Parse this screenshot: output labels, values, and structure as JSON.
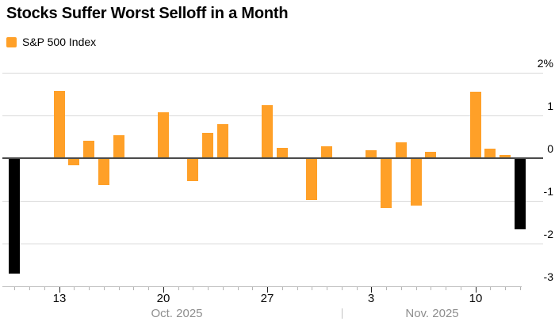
{
  "title": "Stocks Suffer Worst Selloff in a Month",
  "legend": {
    "label": "S&P 500 Index"
  },
  "colors": {
    "background": "#ffffff",
    "bar": "#FFA028",
    "bar_highlight": "#000000",
    "grid": "#d9d9d9",
    "zero_line": "#4a4a4a",
    "axis_line": "#c2c2c2",
    "tick_minor": "#b5b5b5",
    "tick_major": "#222222",
    "date_label": "#0a0a0a",
    "month_label": "#8e8e8e",
    "title_text": "#000000"
  },
  "chart_data": {
    "type": "bar",
    "title": "Stocks Suffer Worst Selloff in a Month",
    "series_name": "S&P 500 Index",
    "y_unit": "percent daily change",
    "ylim": [
      -3,
      2
    ],
    "grid": "horizontal",
    "legend_position": "top-left",
    "y_ticks": [
      {
        "value": 2,
        "label": "2%"
      },
      {
        "value": 1,
        "label": "1"
      },
      {
        "value": 0,
        "label": "0"
      },
      {
        "value": -1,
        "label": "-1"
      },
      {
        "value": -2,
        "label": "-2"
      },
      {
        "value": -3,
        "label": "-3"
      }
    ],
    "x_axis": {
      "first_date": "Oct 10, 2025",
      "last_date": "Nov 13, 2025",
      "tick_labels": [
        {
          "label": "13",
          "day": 3
        },
        {
          "label": "20",
          "day": 10
        },
        {
          "label": "27",
          "day": 17
        },
        {
          "label": "3",
          "day": 24
        },
        {
          "label": "10",
          "day": 31
        }
      ],
      "month_labels": [
        {
          "label": "Oct. 2025",
          "center_day": 10.9
        },
        {
          "label": "Nov. 2025",
          "center_day": 28.1
        }
      ],
      "month_divider_day": 22,
      "minor_tick_days": [
        0,
        1,
        2,
        3,
        4,
        5,
        6,
        7,
        8,
        9,
        10,
        11,
        12,
        13,
        14,
        15,
        16,
        17,
        18,
        19,
        20,
        21,
        22,
        23,
        24,
        25,
        26,
        27,
        28,
        29,
        30,
        31,
        32,
        33,
        34
      ]
    },
    "bars": [
      {
        "date": "Oct 10",
        "day": 0,
        "value": -2.71,
        "highlight": true
      },
      {
        "date": "Oct 13",
        "day": 3,
        "value": 1.56,
        "highlight": false
      },
      {
        "date": "Oct 14",
        "day": 4,
        "value": -0.16,
        "highlight": false
      },
      {
        "date": "Oct 15",
        "day": 5,
        "value": 0.4,
        "highlight": false
      },
      {
        "date": "Oct 16",
        "day": 6,
        "value": -0.63,
        "highlight": false
      },
      {
        "date": "Oct 17",
        "day": 7,
        "value": 0.53,
        "highlight": false
      },
      {
        "date": "Oct 20",
        "day": 10,
        "value": 1.07,
        "highlight": false
      },
      {
        "date": "Oct 21",
        "day": 11,
        "value": 0.0,
        "highlight": false
      },
      {
        "date": "Oct 22",
        "day": 12,
        "value": -0.53,
        "highlight": false
      },
      {
        "date": "Oct 23",
        "day": 13,
        "value": 0.58,
        "highlight": false
      },
      {
        "date": "Oct 24",
        "day": 14,
        "value": 0.79,
        "highlight": false
      },
      {
        "date": "Oct 27",
        "day": 17,
        "value": 1.23,
        "highlight": false
      },
      {
        "date": "Oct 28",
        "day": 18,
        "value": 0.23,
        "highlight": false
      },
      {
        "date": "Oct 29",
        "day": 19,
        "value": 0.0,
        "highlight": false
      },
      {
        "date": "Oct 30",
        "day": 20,
        "value": -0.99,
        "highlight": false
      },
      {
        "date": "Oct 31",
        "day": 21,
        "value": 0.26,
        "highlight": false
      },
      {
        "date": "Nov 3",
        "day": 24,
        "value": 0.17,
        "highlight": false
      },
      {
        "date": "Nov 4",
        "day": 25,
        "value": -1.17,
        "highlight": false
      },
      {
        "date": "Nov 5",
        "day": 26,
        "value": 0.37,
        "highlight": false
      },
      {
        "date": "Nov 6",
        "day": 27,
        "value": -1.12,
        "highlight": false
      },
      {
        "date": "Nov 7",
        "day": 28,
        "value": 0.13,
        "highlight": false
      },
      {
        "date": "Nov 10",
        "day": 31,
        "value": 1.54,
        "highlight": false
      },
      {
        "date": "Nov 11",
        "day": 32,
        "value": 0.21,
        "highlight": false
      },
      {
        "date": "Nov 12",
        "day": 33,
        "value": 0.06,
        "highlight": false
      },
      {
        "date": "Nov 13",
        "day": 34,
        "value": -1.66,
        "highlight": true
      }
    ]
  }
}
